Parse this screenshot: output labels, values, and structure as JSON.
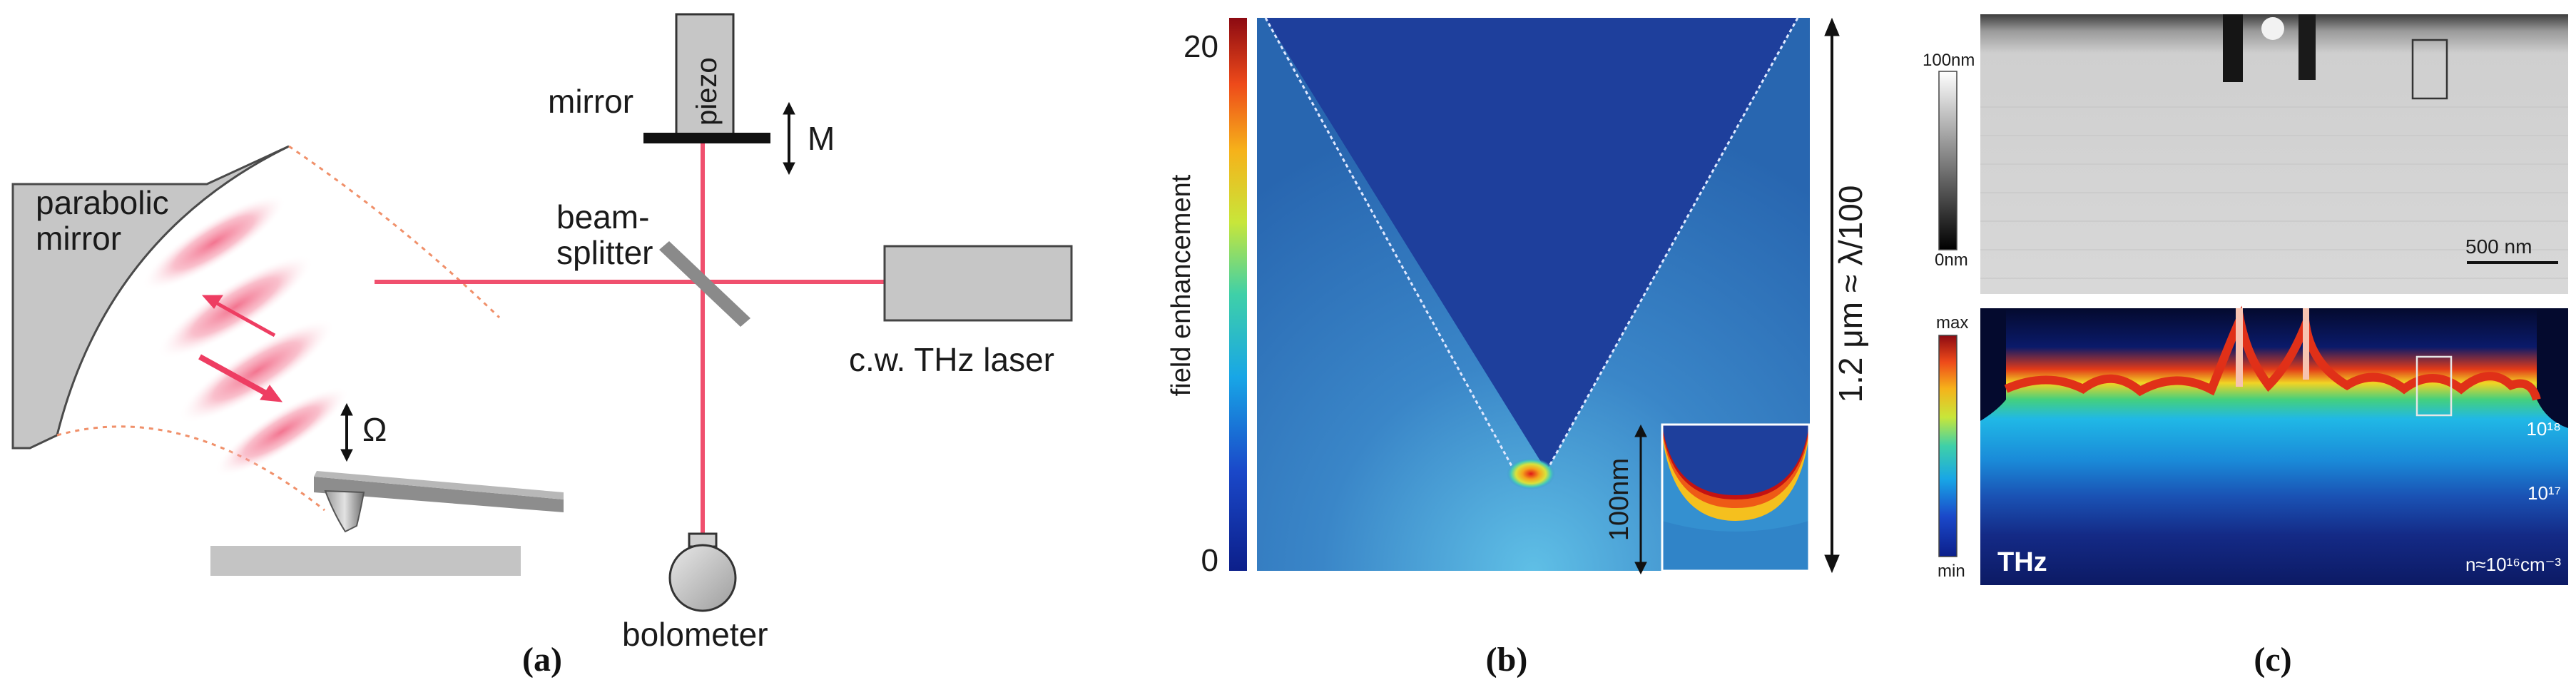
{
  "panel_a": {
    "caption": "(a)",
    "parabolic_mirror": [
      "parabolic",
      "mirror"
    ],
    "mirror": "mirror",
    "piezo": "piezo",
    "piezo_motion": "M",
    "beam_splitter": [
      "beam-",
      "splitter"
    ],
    "laser": "c.w. THz laser",
    "tip_motion": "Ω",
    "detector": "bolometer",
    "colors": {
      "beam": "#f0506e",
      "component": "#c6c6c6",
      "outline": "#555555"
    }
  },
  "panel_b": {
    "caption": "(b)",
    "colorbar_title": "field enhancement",
    "colorbar_max": "20",
    "colorbar_min": "0",
    "height_label": "1.2 μm ≈ λ/100",
    "inset_scale": "100nm",
    "colors": {
      "field": "#1e3f9c",
      "background": "#2a6ab6"
    }
  },
  "panel_c": {
    "caption": "(c)",
    "topo_scale_max": "100nm",
    "topo_scale_min": "0nm",
    "scale_bar": "500 nm",
    "thz_scale_max": "max",
    "thz_scale_min": "min",
    "thz_label": "THz",
    "density_1": "10¹⁸",
    "density_2": "10¹⁷",
    "density_3": "n≈10¹⁶cm⁻³"
  }
}
